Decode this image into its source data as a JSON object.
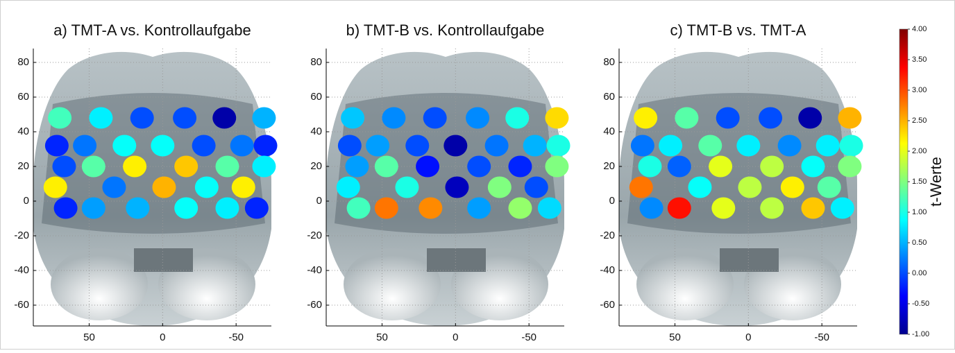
{
  "chart_data": [
    {
      "type": "topoplot",
      "title": "a) TMT-A vs. Kontrollaufgabe",
      "xlim": [
        88,
        -74
      ],
      "ylim": [
        -72,
        88
      ],
      "xticks": [
        50,
        0,
        -50
      ],
      "yticks": [
        80,
        60,
        40,
        20,
        0,
        -20,
        -40,
        -60
      ],
      "grid": true,
      "x": [
        70,
        42,
        14,
        -15,
        -42,
        -69,
        72,
        53,
        26,
        0,
        -28,
        -54,
        -70,
        67,
        47,
        19,
        -16,
        -44,
        -69,
        73,
        33,
        -1,
        -30,
        -55,
        66,
        47,
        17,
        -16,
        -44,
        -64
      ],
      "y": [
        48,
        48,
        48,
        48,
        48,
        48,
        32,
        32,
        32,
        32,
        32,
        32,
        32,
        20,
        20,
        20,
        20,
        20,
        20,
        8,
        8,
        8,
        8,
        8,
        -4,
        -4,
        -4,
        -4,
        -4,
        -4
      ],
      "values": [
        1.2,
        0.8,
        0.0,
        0.0,
        -0.8,
        0.5,
        -0.2,
        0.2,
        0.9,
        0.9,
        0.0,
        0.2,
        -0.2,
        0.0,
        1.3,
        2.2,
        2.4,
        1.3,
        0.8,
        2.2,
        0.2,
        2.5,
        0.9,
        2.2,
        -0.2,
        0.4,
        0.5,
        0.9,
        0.8,
        -0.2
      ]
    },
    {
      "type": "topoplot",
      "title": "b) TMT-B vs. Kontrollaufgabe",
      "xlim": [
        88,
        -74
      ],
      "ylim": [
        -72,
        88
      ],
      "xticks": [
        50,
        0,
        -50
      ],
      "yticks": [
        80,
        60,
        40,
        20,
        0,
        -20,
        -40,
        -60
      ],
      "grid": true,
      "x": [
        70,
        42,
        14,
        -15,
        -42,
        -69,
        72,
        53,
        26,
        0,
        -28,
        -54,
        -70,
        67,
        47,
        19,
        -16,
        -44,
        -69,
        73,
        33,
        -1,
        -30,
        -55,
        66,
        47,
        17,
        -16,
        -44,
        -64
      ],
      "y": [
        48,
        48,
        48,
        48,
        48,
        48,
        32,
        32,
        32,
        32,
        32,
        32,
        32,
        20,
        20,
        20,
        20,
        20,
        20,
        8,
        8,
        8,
        8,
        8,
        -4,
        -4,
        -4,
        -4,
        -4,
        -4
      ],
      "values": [
        0.6,
        0.3,
        0.0,
        0.3,
        1.0,
        2.3,
        0.0,
        0.4,
        0.0,
        -0.8,
        0.2,
        0.5,
        1.0,
        0.4,
        1.3,
        -0.3,
        0.0,
        -0.2,
        1.5,
        0.8,
        1.0,
        -0.7,
        1.5,
        0.0,
        1.2,
        2.8,
        2.7,
        0.4,
        1.6,
        0.7
      ]
    },
    {
      "type": "topoplot",
      "title": "c) TMT-B vs. TMT-A",
      "xlim": [
        88,
        -74
      ],
      "ylim": [
        -72,
        88
      ],
      "xticks": [
        50,
        0,
        -50
      ],
      "yticks": [
        80,
        60,
        40,
        20,
        0,
        -20,
        -40,
        -60
      ],
      "grid": true,
      "x": [
        70,
        42,
        14,
        -15,
        -42,
        -69,
        72,
        53,
        26,
        0,
        -28,
        -54,
        -70,
        67,
        47,
        19,
        -16,
        -44,
        -69,
        73,
        33,
        -1,
        -30,
        -55,
        66,
        47,
        17,
        -16,
        -44,
        -64
      ],
      "y": [
        48,
        48,
        48,
        48,
        48,
        48,
        32,
        32,
        32,
        32,
        32,
        32,
        32,
        20,
        20,
        20,
        20,
        20,
        20,
        8,
        8,
        8,
        8,
        8,
        -4,
        -4,
        -4,
        -4,
        -4,
        -4
      ],
      "values": [
        2.2,
        1.3,
        0.0,
        0.0,
        -0.8,
        2.5,
        0.2,
        0.8,
        1.3,
        0.8,
        0.3,
        0.8,
        1.0,
        1.0,
        0.1,
        2.0,
        1.8,
        0.9,
        1.5,
        2.8,
        0.9,
        1.8,
        2.2,
        1.3,
        0.3,
        3.3,
        2.0,
        1.8,
        2.4,
        0.8
      ]
    }
  ],
  "colorbar": {
    "label": "t-Werte",
    "colormap": "jet",
    "lim": [
      -1,
      4
    ],
    "ticks": [
      {
        "value": 4,
        "label": "4.00"
      },
      {
        "value": 3.5,
        "label": "3.50"
      },
      {
        "value": 3,
        "label": "3.00"
      },
      {
        "value": 2.5,
        "label": "2.50"
      },
      {
        "value": 2,
        "label": "2.00"
      },
      {
        "value": 1.5,
        "label": "1.50"
      },
      {
        "value": 1,
        "label": "1.00"
      },
      {
        "value": 0.5,
        "label": "0.50"
      },
      {
        "value": 0,
        "label": "0.00"
      },
      {
        "value": -0.5,
        "label": "-0.50"
      },
      {
        "value": -1,
        "label": "-1.00"
      }
    ]
  }
}
